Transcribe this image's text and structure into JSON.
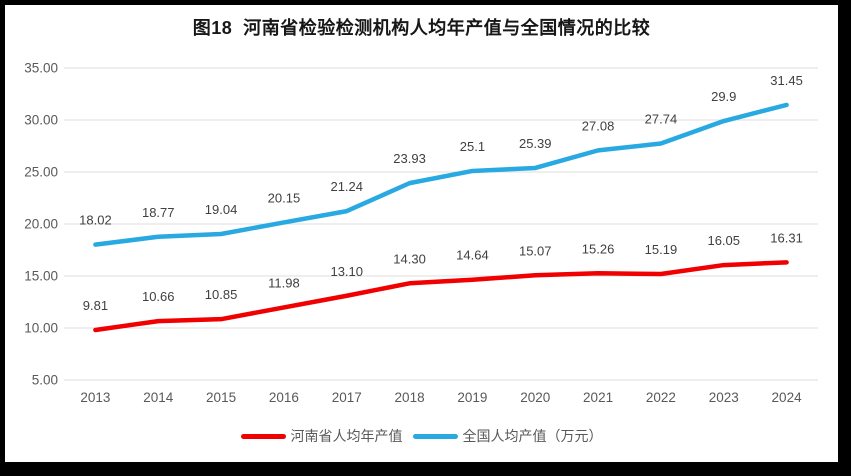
{
  "chart_data": {
    "type": "line",
    "title": "图18  河南省检验检测机构人均年产值与全国情况的比较",
    "categories": [
      "2013",
      "2014",
      "2015",
      "2016",
      "2017",
      "2018",
      "2019",
      "2020",
      "2021",
      "2022",
      "2023",
      "2024"
    ],
    "series": [
      {
        "name": "河南省人均年产值",
        "color": "#F00000",
        "values": [
          9.81,
          10.66,
          10.85,
          11.98,
          13.1,
          14.3,
          14.64,
          15.07,
          15.26,
          15.19,
          16.05,
          16.31
        ],
        "labels": [
          "9.81",
          "10.66",
          "10.85",
          "11.98",
          "13.10",
          "14.30",
          "14.64",
          "15.07",
          "15.26",
          "15.19",
          "16.05",
          "16.31"
        ]
      },
      {
        "name": "全国人均产值（万元）",
        "color": "#29A9E1",
        "values": [
          18.02,
          18.77,
          19.04,
          20.15,
          21.24,
          23.93,
          25.1,
          25.39,
          27.08,
          27.74,
          29.9,
          31.45
        ],
        "labels": [
          "18.02",
          "18.77",
          "19.04",
          "20.15",
          "21.24",
          "23.93",
          "25.1",
          "25.39",
          "27.08",
          "27.74",
          "29.9",
          "31.45"
        ]
      }
    ],
    "ylim": [
      5,
      35
    ],
    "yticks": [
      "5.00",
      "10.00",
      "15.00",
      "20.00",
      "25.00",
      "30.00",
      "35.00"
    ],
    "grid": true,
    "grid_color": "#DCDCDC",
    "axis_label_color": "#595959",
    "data_label_color": "#404040",
    "legend_position": "bottom"
  }
}
